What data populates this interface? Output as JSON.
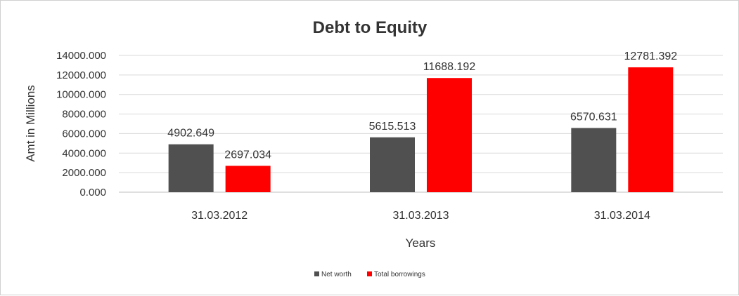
{
  "chart_data": {
    "type": "bar",
    "title": "Debt to Equity",
    "xlabel": "Years",
    "ylabel": "Amt in Millions",
    "categories": [
      "31.03.2012",
      "31.03.2013",
      "31.03.2014"
    ],
    "series": [
      {
        "name": "Net worth",
        "color": "#505050",
        "values": [
          4902.649,
          5615.513,
          6570.631
        ],
        "labels": [
          "4902.649",
          "5615.513",
          "6570.631"
        ]
      },
      {
        "name": "Total borrowings",
        "color": "#ff0000",
        "values": [
          2697.034,
          11688.192,
          12781.392
        ],
        "labels": [
          "2697.034",
          "11688.192",
          "12781.392"
        ]
      }
    ],
    "ylim": [
      0,
      14000
    ],
    "yticks": [
      "0.000",
      "2000.000",
      "4000.000",
      "6000.000",
      "8000.000",
      "10000.000",
      "12000.000",
      "14000.000"
    ],
    "grid": true,
    "legend_position": "bottom"
  }
}
